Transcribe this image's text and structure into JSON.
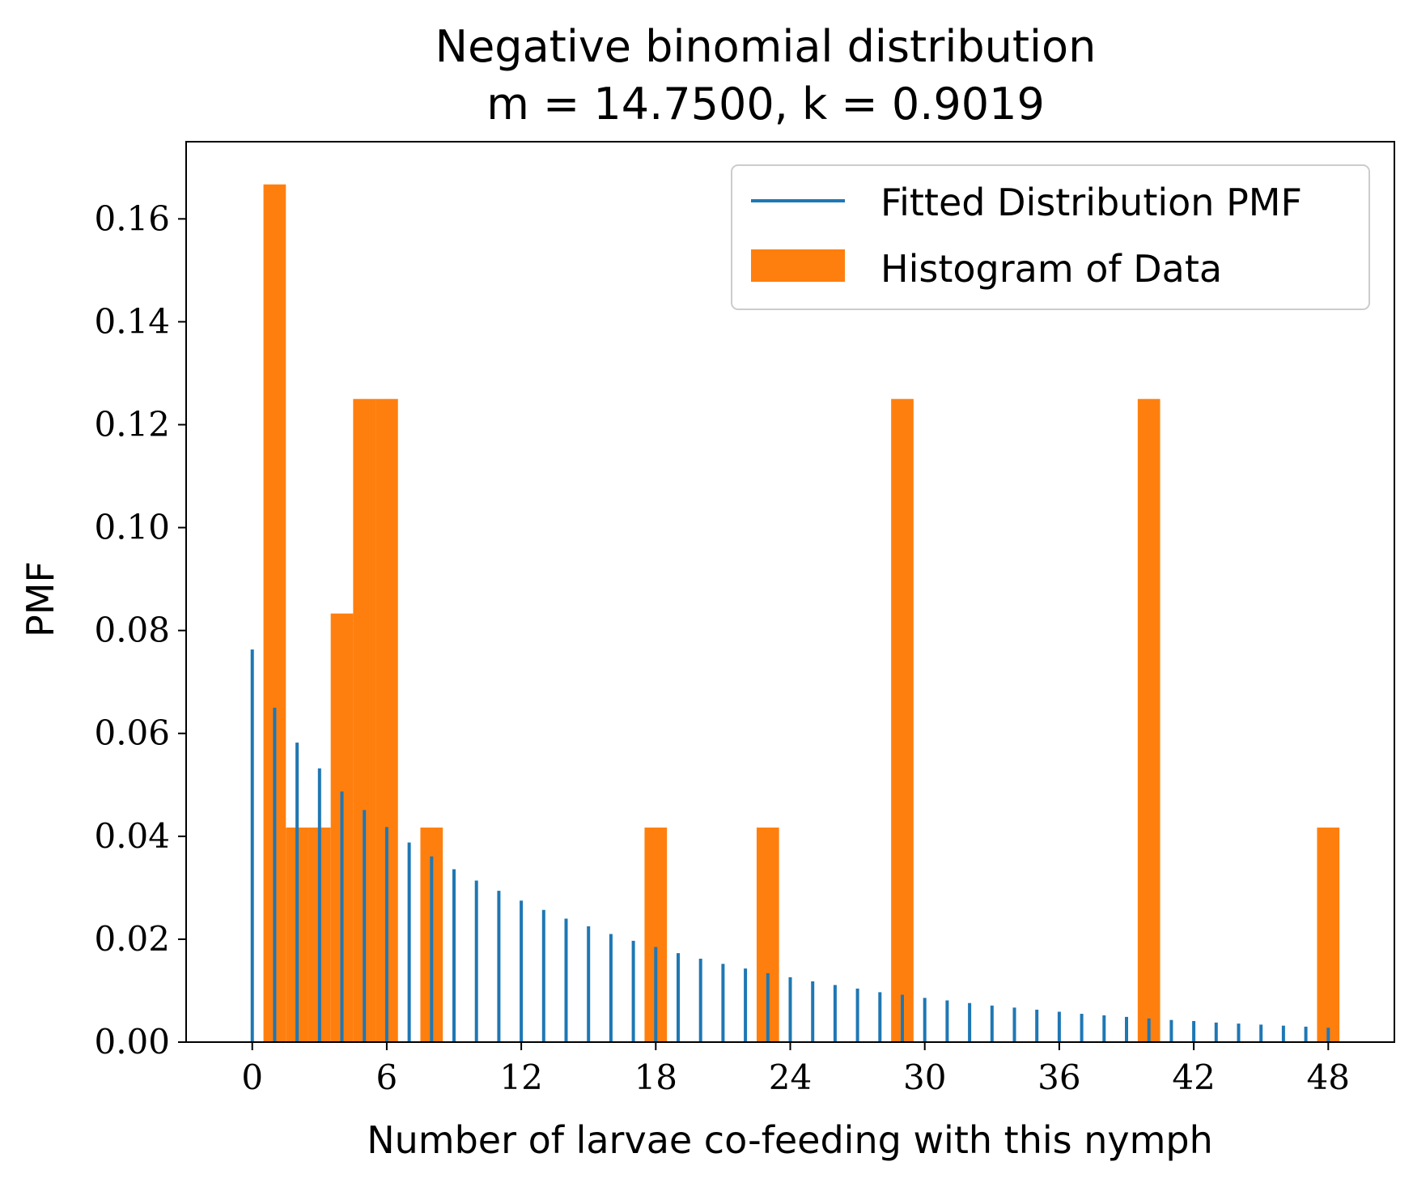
{
  "chart_data": {
    "type": "bar",
    "title": "Negative binomial distribution",
    "subtitle": "m = 14.7500, k = 0.9019",
    "xlabel": "Number of larvae co-feeding with this nymph",
    "ylabel": "PMF",
    "xlim": [
      -2.95,
      50.95
    ],
    "ylim": [
      0,
      0.175
    ],
    "xticks": [
      0,
      6,
      12,
      18,
      24,
      30,
      36,
      42,
      48
    ],
    "yticks": [
      0.0,
      0.02,
      0.04,
      0.06,
      0.08,
      0.1,
      0.12,
      0.14,
      0.16
    ],
    "ytick_labels": [
      "0.00",
      "0.02",
      "0.04",
      "0.06",
      "0.08",
      "0.10",
      "0.12",
      "0.14",
      "0.16"
    ],
    "legend": {
      "position": "upper right",
      "entries": [
        "Fitted Distribution PMF",
        "Histogram of Data"
      ]
    },
    "series": [
      {
        "name": "Fitted Distribution PMF",
        "kind": "stem",
        "color": "#1f77b4",
        "x": [
          0,
          1,
          2,
          3,
          4,
          5,
          6,
          7,
          8,
          9,
          10,
          11,
          12,
          13,
          14,
          15,
          16,
          17,
          18,
          19,
          20,
          21,
          22,
          23,
          24,
          25,
          26,
          27,
          28,
          29,
          30,
          31,
          32,
          33,
          34,
          35,
          36,
          37,
          38,
          39,
          40,
          41,
          42,
          43,
          44,
          45,
          46,
          47,
          48
        ],
        "values": [
          0.0763,
          0.065,
          0.0582,
          0.0532,
          0.0487,
          0.0451,
          0.0418,
          0.0388,
          0.0361,
          0.0336,
          0.0314,
          0.0294,
          0.0275,
          0.0257,
          0.024,
          0.0225,
          0.021,
          0.0197,
          0.0185,
          0.0173,
          0.0162,
          0.0152,
          0.0143,
          0.0134,
          0.0126,
          0.0118,
          0.0111,
          0.0104,
          0.0097,
          0.0092,
          0.0086,
          0.0081,
          0.0076,
          0.0071,
          0.0067,
          0.0063,
          0.0059,
          0.0055,
          0.0052,
          0.0049,
          0.0046,
          0.0043,
          0.0041,
          0.0038,
          0.0036,
          0.0034,
          0.0032,
          0.003,
          0.0028
        ]
      },
      {
        "name": "Histogram of Data",
        "kind": "histogram",
        "color": "#ff7f0e",
        "bin_edges": [
          0.5,
          1.5,
          2.5,
          3.5,
          4.5,
          5.5,
          6.5,
          7.5,
          8.5,
          9.5,
          10.5,
          11.5,
          12.5,
          13.5,
          14.5,
          15.5,
          16.5,
          17.5,
          18.5,
          19.5,
          20.5,
          21.5,
          22.5,
          23.5,
          24.5,
          25.5,
          26.5,
          27.5,
          28.5,
          29.5,
          30.5,
          31.5,
          32.5,
          33.5,
          34.5,
          35.5,
          36.5,
          37.5,
          38.5,
          39.5,
          40.5,
          41.5,
          42.5,
          43.5,
          44.5,
          45.5,
          46.5,
          47.5,
          48.5
        ],
        "values": [
          0.1667,
          0.0417,
          0.0417,
          0.0833,
          0.125,
          0.125,
          0,
          0.0417,
          0,
          0,
          0,
          0,
          0,
          0,
          0,
          0,
          0,
          0.0417,
          0,
          0,
          0,
          0,
          0.0417,
          0,
          0,
          0,
          0,
          0,
          0.125,
          0,
          0,
          0,
          0,
          0,
          0,
          0,
          0,
          0,
          0,
          0.125,
          0,
          0,
          0,
          0,
          0,
          0,
          0,
          0.0417
        ]
      }
    ]
  }
}
